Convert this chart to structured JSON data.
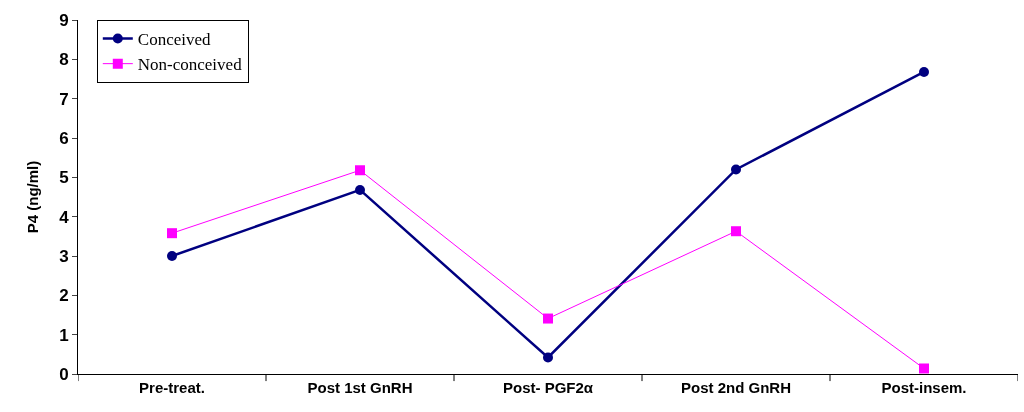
{
  "chart_data": {
    "type": "line",
    "ylabel": "P4 (ng/ml)",
    "categories": [
      "Pre-treat.",
      "Post 1st GnRH",
      "Post- PGF2α",
      "Post 2nd GnRH",
      "Post-insem."
    ],
    "series": [
      {
        "name": "Conceived",
        "color": "#000080",
        "marker": "circle",
        "values": [
          3.0,
          4.68,
          0.42,
          5.2,
          7.68
        ]
      },
      {
        "name": "Non-conceived",
        "color": "#ff00ff",
        "marker": "square",
        "values": [
          3.58,
          5.18,
          1.41,
          3.63,
          0.14
        ]
      }
    ],
    "ylim": [
      0,
      9
    ],
    "yticks": [
      0,
      1,
      2,
      3,
      4,
      5,
      6,
      7,
      8,
      9
    ],
    "grid": false,
    "legend": "top left",
    "line_style": "solid"
  }
}
